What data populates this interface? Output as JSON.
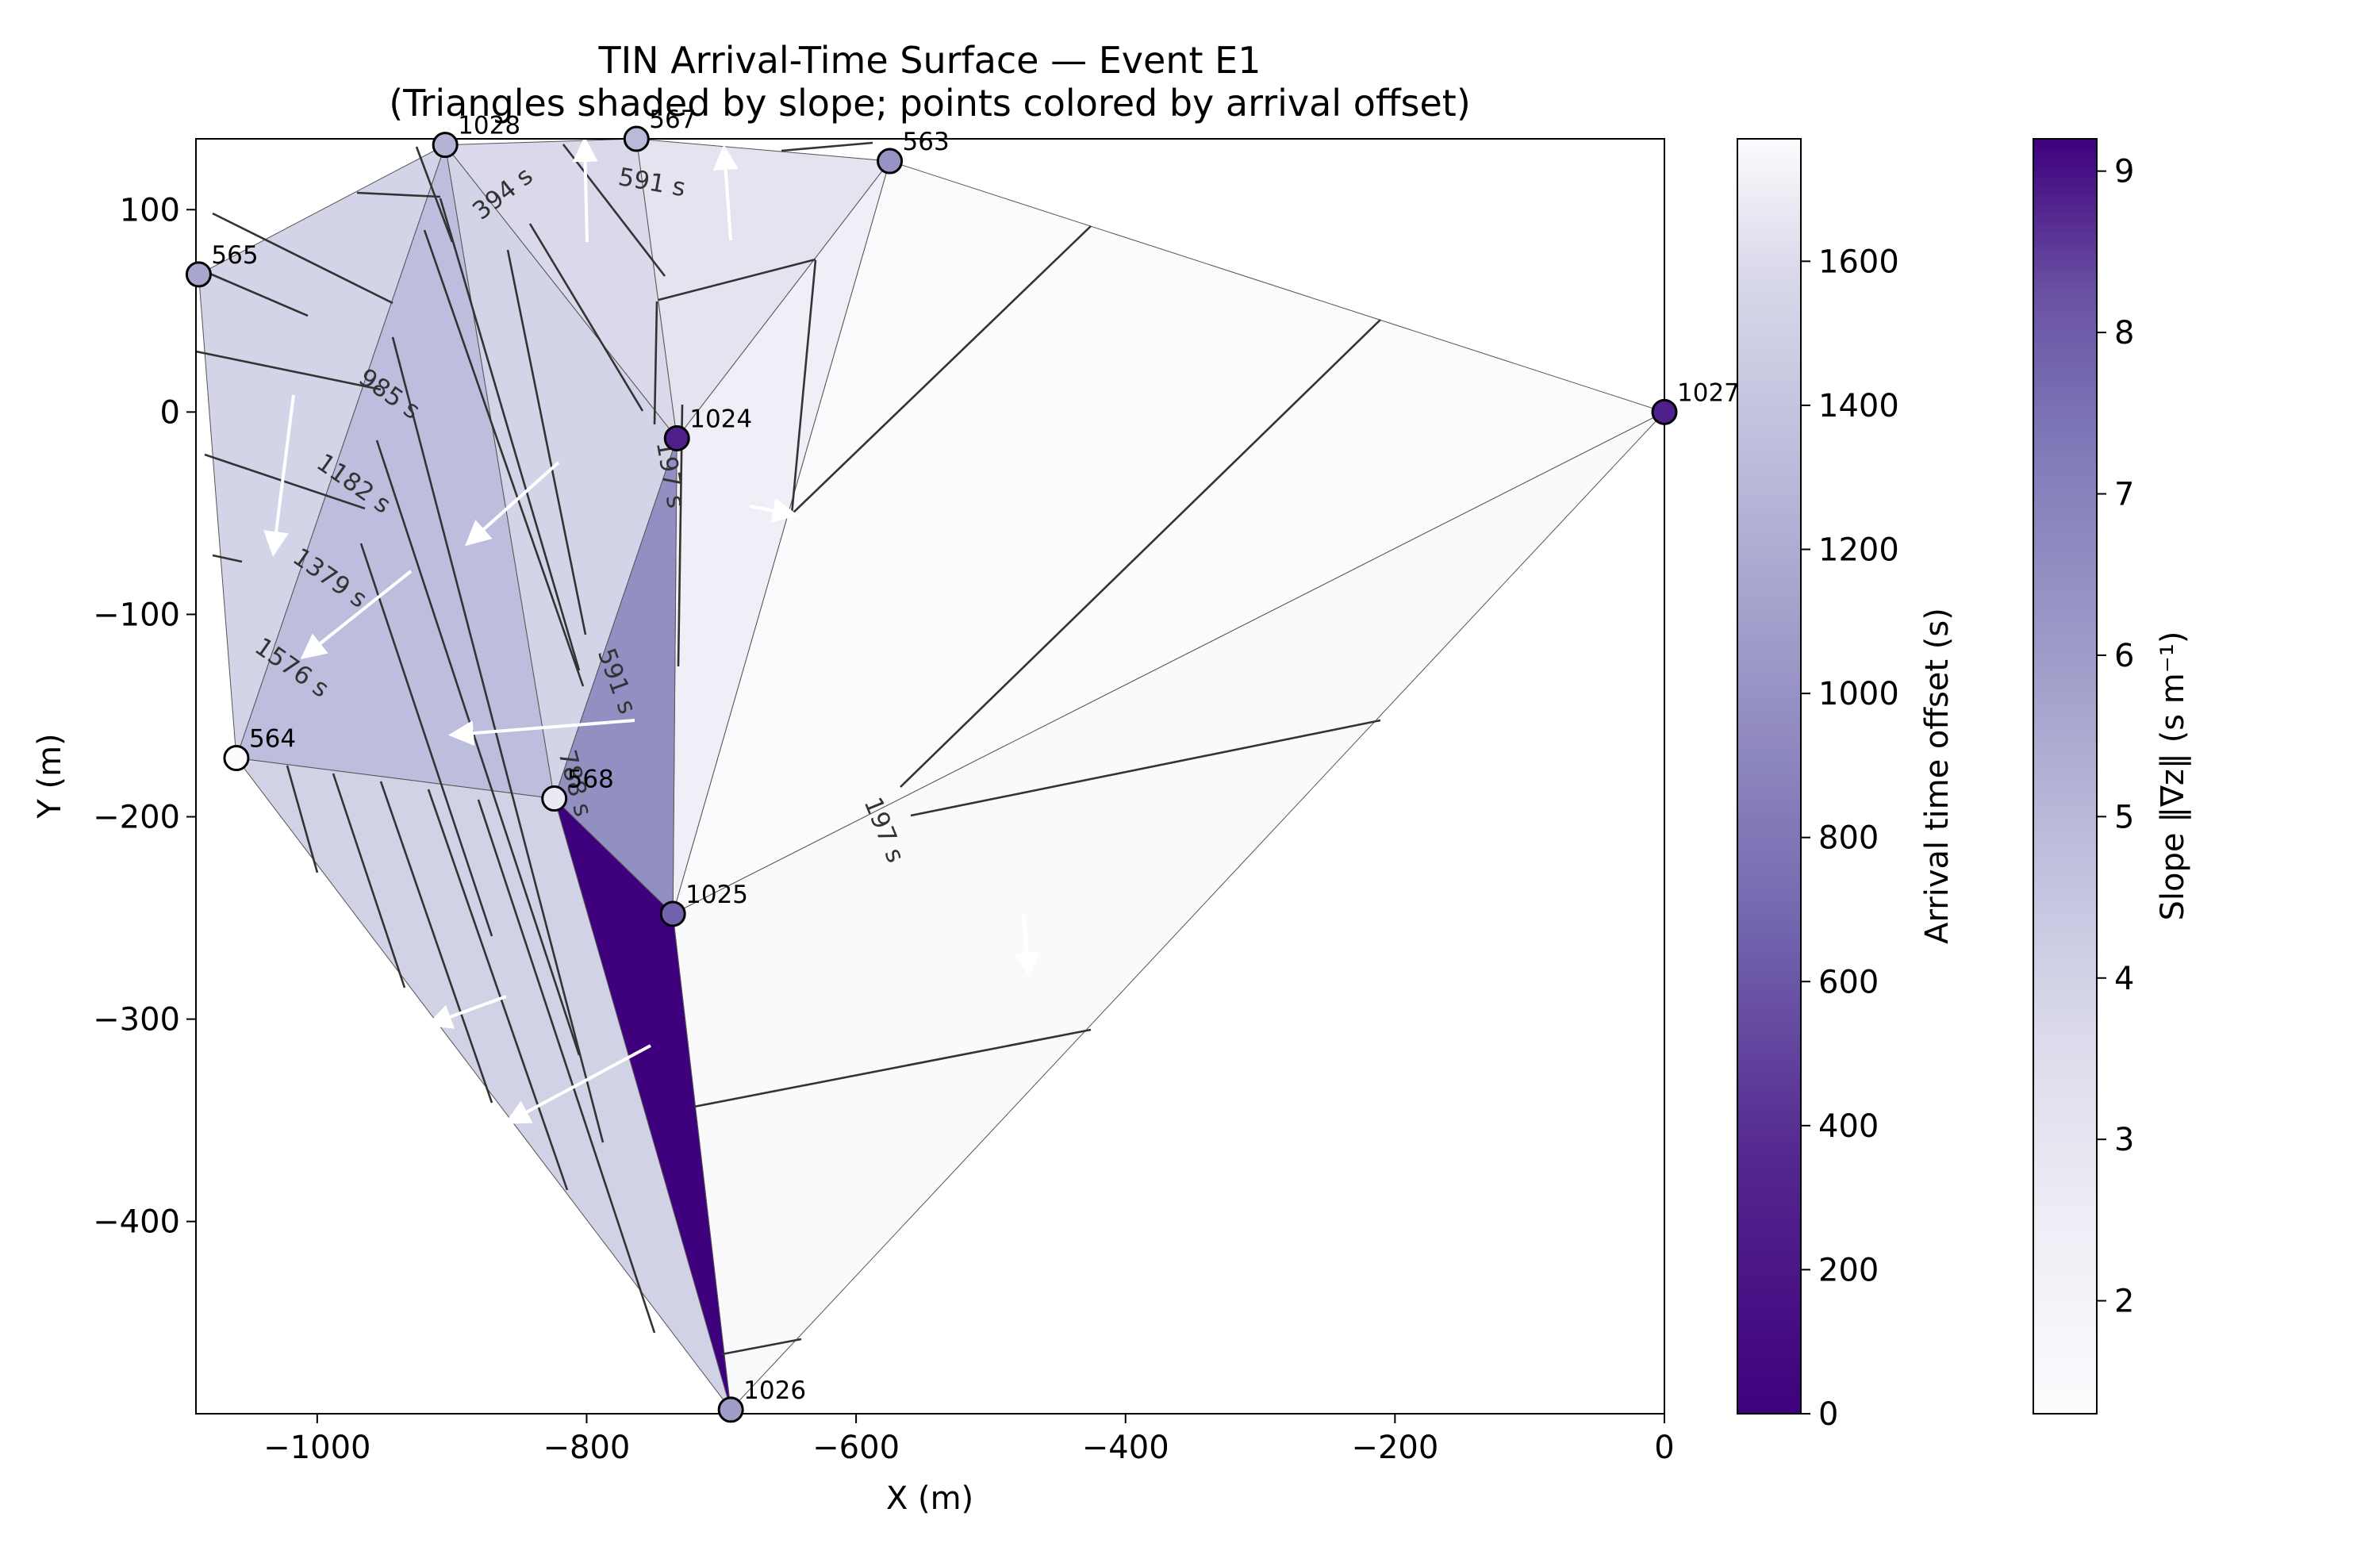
{
  "chart_data": {
    "type": "tin_surface",
    "title": "TIN Arrival-Time Surface — Event E1",
    "subtitle": "(Triangles shaded by slope; points colored by arrival offset)",
    "xlabel": "X (m)",
    "ylabel": "Y (m)",
    "xlim": [
      -1090,
      0
    ],
    "ylim": [
      -495,
      135
    ],
    "xticks": [
      -1000,
      -800,
      -600,
      -400,
      -200,
      0
    ],
    "yticks": [
      100,
      0,
      -100,
      -200,
      -300,
      -400
    ],
    "xtick_labels": [
      "−1000",
      "−800",
      "−600",
      "−400",
      "−200",
      "0"
    ],
    "ytick_labels": [
      "100",
      "0",
      "−100",
      "−200",
      "−300",
      "−400"
    ],
    "points": [
      {
        "id": "1028",
        "x": -905,
        "y": 132,
        "offset": 900
      },
      {
        "id": "567",
        "x": -763,
        "y": 135,
        "offset": 950
      },
      {
        "id": "563",
        "x": -575,
        "y": 124,
        "offset": 650
      },
      {
        "id": "565",
        "x": -1088,
        "y": 68,
        "offset": 800
      },
      {
        "id": "1027",
        "x": 0,
        "y": 0,
        "offset": 80
      },
      {
        "id": "1024",
        "x": -733,
        "y": -13,
        "offset": 80
      },
      {
        "id": "564",
        "x": -1060,
        "y": -171,
        "offset": 1760
      },
      {
        "id": "568",
        "x": -824,
        "y": -191,
        "offset": 1450
      },
      {
        "id": "1025",
        "x": -736,
        "y": -248,
        "offset": 300
      },
      {
        "id": "1026",
        "x": -693,
        "y": -493,
        "offset": 720
      }
    ],
    "triangles": [
      {
        "v": [
          "565",
          "1028",
          "564"
        ],
        "slope": 3.9
      },
      {
        "v": [
          "1028",
          "568",
          "564"
        ],
        "slope": 4.8
      },
      {
        "v": [
          "1028",
          "567",
          "1024"
        ],
        "slope": 3.7
      },
      {
        "v": [
          "1028",
          "1024",
          "568"
        ],
        "slope": 3.9
      },
      {
        "v": [
          "567",
          "563",
          "1024"
        ],
        "slope": 3.1
      },
      {
        "v": [
          "563",
          "1025",
          "1024"
        ],
        "slope": 2.4
      },
      {
        "v": [
          "563",
          "1027",
          "1025"
        ],
        "slope": 1.35
      },
      {
        "v": [
          "1024",
          "1025",
          "568"
        ],
        "slope": 6.5
      },
      {
        "v": [
          "568",
          "1025",
          "1026"
        ],
        "slope": 9.2
      },
      {
        "v": [
          "564",
          "568",
          "1026"
        ],
        "slope": 4.0
      },
      {
        "v": [
          "1025",
          "1027",
          "1026"
        ],
        "slope": 1.45
      }
    ],
    "contour_labels": [
      "591 s",
      "394 s",
      "985 s",
      "1182 s",
      "1379 s",
      "1576 s",
      "197 s",
      "591 s",
      "788 s",
      "197 s"
    ],
    "colorbars": [
      {
        "label": "Arrival time offset (s)",
        "cmap": "Purples_r",
        "range": [
          0,
          1770
        ],
        "ticks": [
          "0",
          "200",
          "400",
          "600",
          "800",
          "1000",
          "1200",
          "1400",
          "1600"
        ]
      },
      {
        "label": "Slope ‖∇z‖ (s m⁻¹)",
        "cmap": "Purples",
        "range": [
          1.3,
          9.2
        ],
        "ticks": [
          "2",
          "3",
          "4",
          "5",
          "6",
          "7",
          "8",
          "9"
        ]
      }
    ],
    "grid": false
  }
}
